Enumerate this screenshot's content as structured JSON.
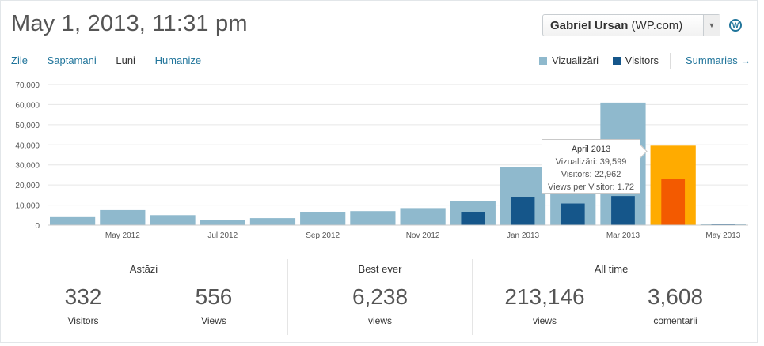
{
  "header": {
    "title": "May 1, 2013, 11:31 pm"
  },
  "site_selector": {
    "name": "Gabriel Ursan",
    "suffix": "(WP.com)"
  },
  "tabs": [
    {
      "label": "Zile"
    },
    {
      "label": "Saptamani"
    },
    {
      "label": "Luni"
    },
    {
      "label": "Humanize"
    }
  ],
  "legend": {
    "views_label": "Vizualizări",
    "visitors_label": "Visitors",
    "summaries_label": "Summaries",
    "arrow": "→"
  },
  "colors": {
    "views": "#8fb9cd",
    "visitors": "#15568a",
    "highlight_views": "#ffab00",
    "highlight_visitors": "#f35a00",
    "link": "#21759b"
  },
  "chart_data": {
    "type": "bar",
    "categories": [
      "Apr 2012",
      "May 2012",
      "Jun 2012",
      "Jul 2012",
      "Aug 2012",
      "Sep 2012",
      "Oct 2012",
      "Nov 2012",
      "Dec 2012",
      "Jan 2013",
      "Feb 2013",
      "Mar 2013",
      "Apr 2013",
      "May 2013"
    ],
    "x_tick_labels": [
      "",
      "May 2012",
      "",
      "Jul 2012",
      "",
      "Sep 2012",
      "",
      "Nov 2012",
      "",
      "Jan 2013",
      "",
      "Mar 2013",
      "",
      "May 2013"
    ],
    "series": [
      {
        "name": "Vizualizări",
        "values": [
          4000,
          7500,
          5000,
          2700,
          3500,
          6500,
          7000,
          8500,
          12000,
          29000,
          18000,
          61000,
          39599,
          556
        ]
      },
      {
        "name": "Visitors",
        "values": [
          0,
          0,
          0,
          0,
          0,
          0,
          0,
          0,
          6500,
          13800,
          10800,
          14500,
          22962,
          332
        ]
      }
    ],
    "highlight_index": 12,
    "ylim": [
      0,
      70000
    ],
    "yticks": [
      "0",
      "10,000",
      "20,000",
      "30,000",
      "40,000",
      "50,000",
      "60,000",
      "70,000"
    ],
    "ytick_values": [
      0,
      10000,
      20000,
      30000,
      40000,
      50000,
      60000,
      70000
    ],
    "grid": true
  },
  "tooltip": {
    "title": "April 2013",
    "line1": "Vizualizări: 39,599",
    "line2": "Visitors: 22,962",
    "line3": "Views per Visitor: 1.72"
  },
  "stats": {
    "today": {
      "heading": "Astăzi",
      "visitors_value": "332",
      "visitors_label": "Visitors",
      "views_value": "556",
      "views_label": "Views"
    },
    "best": {
      "heading": "Best ever",
      "value": "6,238",
      "label": "views"
    },
    "all_time": {
      "heading": "All time",
      "views_value": "213,146",
      "views_label": "views",
      "comments_value": "3,608",
      "comments_label": "comentarii"
    }
  }
}
